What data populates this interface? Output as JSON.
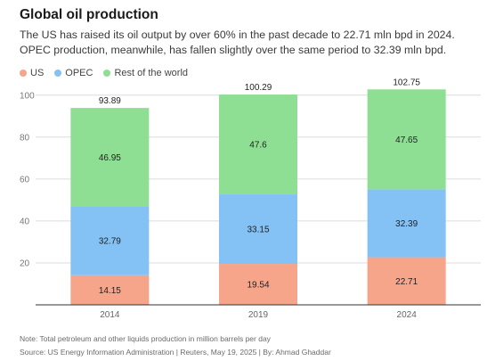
{
  "title": "Global oil production",
  "subtitle": "The US has raised its oil output by over 60% in the past decade to 22.71 mln bpd in 2024. OPEC production, meanwhile, has fallen slightly over the same period to 32.39 mln bpd.",
  "note": "Note: Total petroleum and other liquids production in million barrels per day",
  "source": "Source: US Energy Information Administration | Reuters, May 19, 2025 | By: Ahmad Ghaddar",
  "chart_data": {
    "type": "bar",
    "stacked": true,
    "categories": [
      "2014",
      "2019",
      "2024"
    ],
    "series": [
      {
        "name": "US",
        "values": [
          14.15,
          19.54,
          22.71
        ],
        "color": "#f7a58a"
      },
      {
        "name": "OPEC",
        "values": [
          32.79,
          33.15,
          32.39
        ],
        "color": "#84c1f5"
      },
      {
        "name": "Rest of the world",
        "values": [
          46.95,
          47.6,
          47.65
        ],
        "color": "#8ede94"
      }
    ],
    "totals": [
      "93.89",
      "100.29",
      "102.75"
    ],
    "value_labels": [
      [
        "14.15",
        "19.54",
        "22.71"
      ],
      [
        "32.79",
        "33.15",
        "32.39"
      ],
      [
        "46.95",
        "47.6",
        "47.65"
      ]
    ],
    "y_ticks": [
      0,
      20,
      40,
      60,
      80,
      100
    ],
    "y_tick_labels": [
      "",
      "20",
      "40",
      "60",
      "80",
      "100"
    ],
    "ylim": [
      0,
      105
    ],
    "grid": true,
    "legend": "top-left"
  }
}
